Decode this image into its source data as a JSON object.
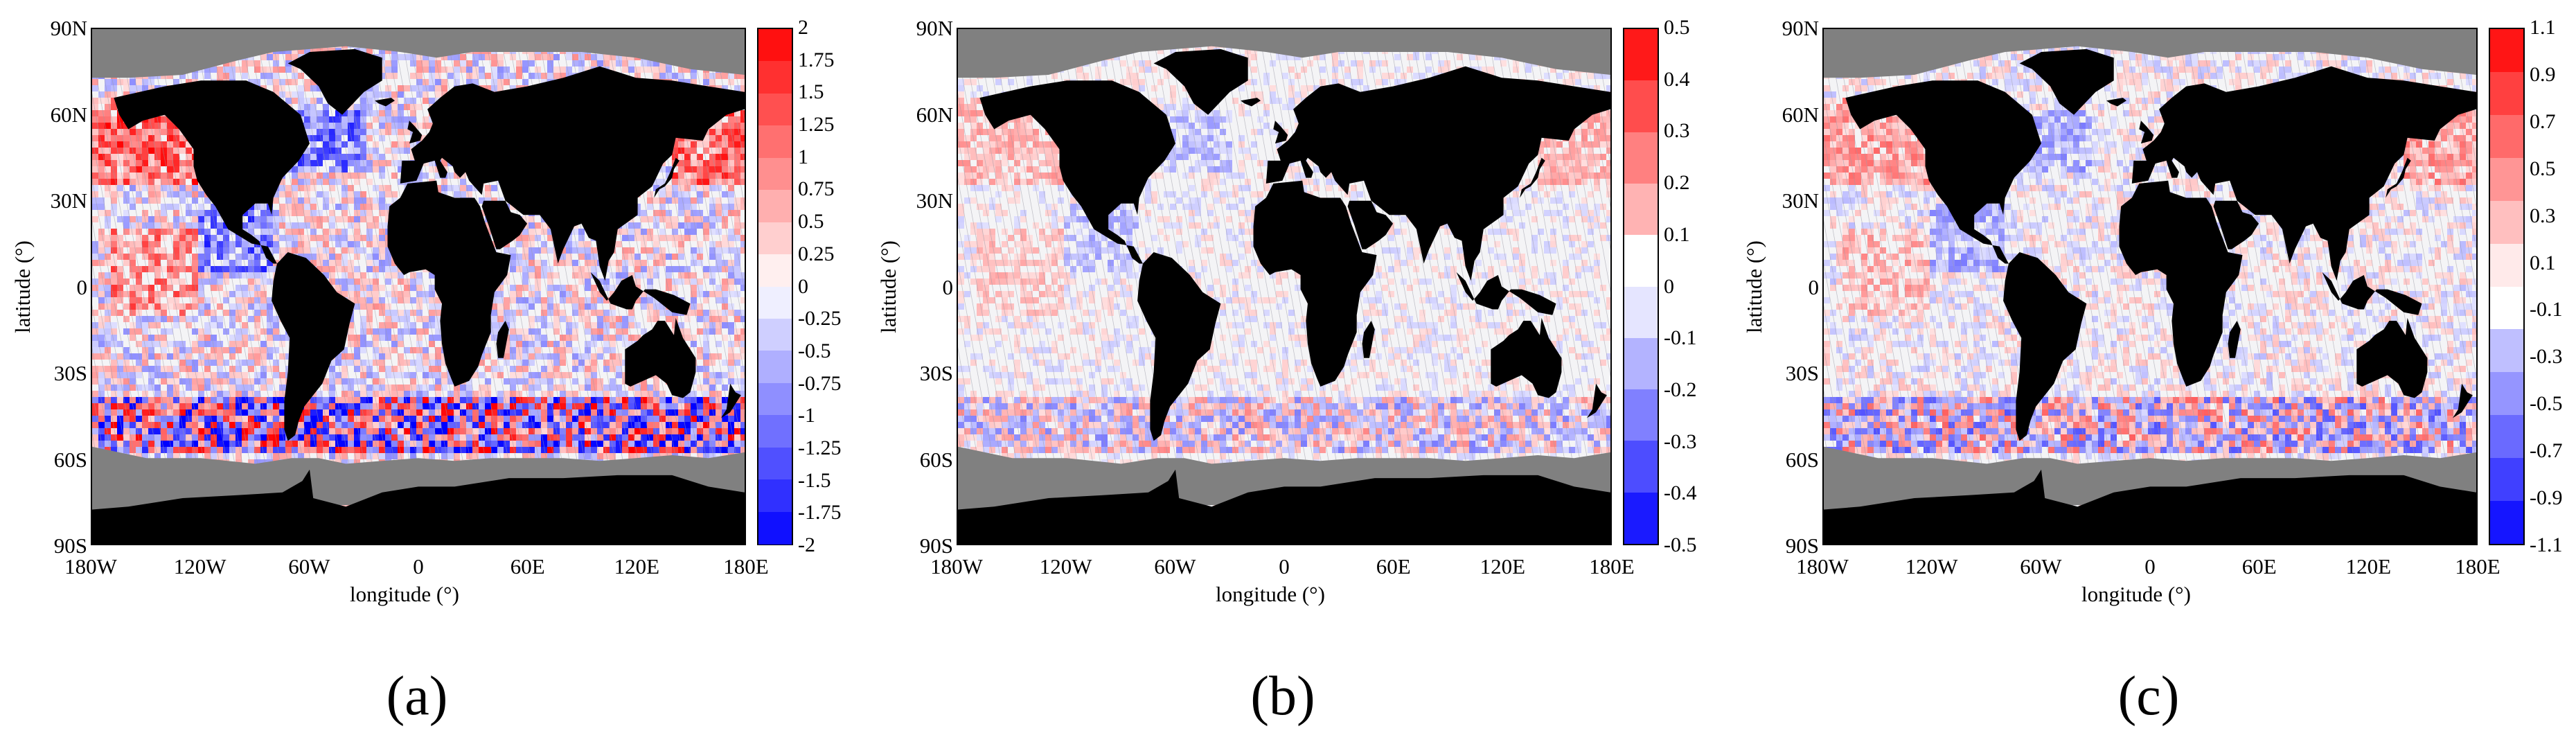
{
  "figure": {
    "panels": [
      {
        "label": "(a)",
        "xlabel": "longitude (°)",
        "ylabel": "latitude (°)",
        "lat_ticks": [
          "90N",
          "60N",
          "30N",
          "0",
          "30S",
          "60S",
          "90S"
        ],
        "lon_ticks": [
          "180W",
          "120W",
          "60W",
          "0",
          "60E",
          "120E",
          "180E"
        ],
        "colorbar": {
          "ticks": [
            "2",
            "1.75",
            "1.5",
            "1.25",
            "1",
            "0.75",
            "0.5",
            "0.25",
            "0",
            "-0.25",
            "-0.5",
            "-0.75",
            "-1",
            "-1.25",
            "-1.5",
            "-1.75",
            "-2"
          ],
          "range": [
            -2,
            2
          ]
        },
        "intensity": 1.0
      },
      {
        "label": "(b)",
        "xlabel": "longitude (°)",
        "ylabel": "latitude (°)",
        "lat_ticks": [
          "90N",
          "60N",
          "30N",
          "0",
          "30S",
          "60S",
          "90S"
        ],
        "lon_ticks": [
          "180W",
          "120W",
          "60W",
          "0",
          "60E",
          "120E",
          "180E"
        ],
        "colorbar": {
          "ticks": [
            "0.5",
            "0.4",
            "0.3",
            "0.2",
            "0.1",
            "0",
            "-0.1",
            "-0.2",
            "-0.3",
            "-0.4",
            "-0.5"
          ],
          "range": [
            -0.55,
            0.55
          ]
        },
        "intensity": 0.45
      },
      {
        "label": "(c)",
        "xlabel": "longitude (°)",
        "ylabel": "latitude (°)",
        "lat_ticks": [
          "90N",
          "60N",
          "30N",
          "0",
          "30S",
          "60S",
          "90S"
        ],
        "lon_ticks": [
          "180W",
          "120W",
          "60W",
          "0",
          "60E",
          "120E",
          "180E"
        ],
        "colorbar": {
          "ticks": [
            "1.1",
            "0.9",
            "0.7",
            "0.5",
            "0.3",
            "0.1",
            "-0.1",
            "-0.3",
            "-0.5",
            "-0.7",
            "-0.9",
            "-1.1"
          ],
          "range": [
            -1.1,
            1.1
          ]
        },
        "intensity": 0.6
      }
    ]
  },
  "colors": {
    "land": "#000000",
    "ice": "#808080",
    "ocean_neutral": "#f4f4f6",
    "positive_max": "#ff0000",
    "negative_max": "#0000ff"
  }
}
